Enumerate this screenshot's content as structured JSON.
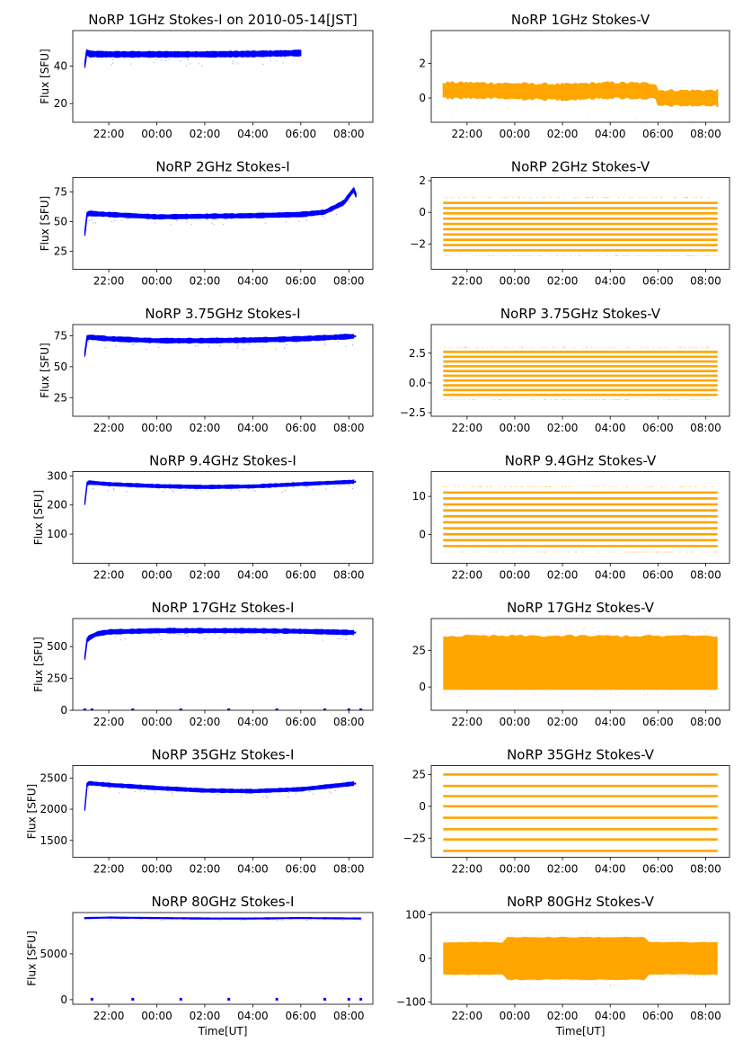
{
  "figure": {
    "background": "#ffffff"
  },
  "colors": {
    "stokes_i": "#0000ff",
    "stokes_v": "#ffa500",
    "axis": "#000000"
  },
  "chart_data": [
    {
      "id": "i1",
      "type": "scatter",
      "column": "left",
      "title": "NoRP 1GHz Stokes-I on 2010-05-14[JST]",
      "ylabel": "Flux [SFU]",
      "xlabel": "",
      "xlim": [
        20.5,
        33.0
      ],
      "ylim": [
        10,
        59
      ],
      "yticks": [
        20,
        40
      ],
      "ytick_labels": [
        "20",
        "40"
      ],
      "xticks": [
        22,
        24,
        26,
        28,
        30,
        32
      ],
      "xtick_labels": [
        "22:00",
        "00:00",
        "02:00",
        "04:00",
        "06:00",
        "08:00"
      ],
      "series": [
        {
          "x": [
            21.0,
            21.05,
            21.2,
            22.0,
            24.0,
            26.0,
            28.0,
            30.0
          ],
          "y": [
            40.5,
            47.5,
            46.5,
            46.3,
            46.3,
            46.3,
            46.5,
            47.0
          ]
        }
      ],
      "band": 1.6,
      "end_x": 30.0,
      "dropouts": []
    },
    {
      "id": "v1",
      "type": "scatter",
      "column": "right",
      "title": "NoRP 1GHz Stokes-V",
      "ylabel": "",
      "xlabel": "",
      "xlim": [
        20.5,
        33.0
      ],
      "ylim": [
        -1.4,
        3.9
      ],
      "yticks": [
        0,
        2
      ],
      "ytick_labels": [
        "0",
        "2"
      ],
      "xticks": [
        22,
        24,
        26,
        28,
        30,
        32
      ],
      "xtick_labels": [
        "22:00",
        "00:00",
        "02:00",
        "04:00",
        "06:00",
        "08:00"
      ],
      "series": [
        {
          "x": [
            21.0,
            22.0,
            24.0,
            26.0,
            28.0,
            29.9,
            30.0,
            32.5
          ],
          "y": [
            0.45,
            0.45,
            0.4,
            0.35,
            0.45,
            0.4,
            0.0,
            0.0
          ]
        }
      ],
      "band": 0.5,
      "end_x": 32.5,
      "dropouts": []
    },
    {
      "id": "i2",
      "type": "scatter",
      "column": "left",
      "title": "NoRP 2GHz Stokes-I",
      "ylabel": "Flux [SFU]",
      "xlabel": "",
      "xlim": [
        20.5,
        33.0
      ],
      "ylim": [
        10,
        87
      ],
      "yticks": [
        25,
        50,
        75
      ],
      "ytick_labels": [
        "25",
        "50",
        "75"
      ],
      "xticks": [
        22,
        24,
        26,
        28,
        30,
        32
      ],
      "xtick_labels": [
        "22:00",
        "00:00",
        "02:00",
        "04:00",
        "06:00",
        "08:00"
      ],
      "series": [
        {
          "x": [
            21.0,
            21.1,
            22.0,
            24.0,
            26.0,
            28.0,
            30.0,
            31.0,
            31.8,
            32.2,
            32.3
          ],
          "y": [
            40,
            57,
            56,
            54,
            54.5,
            55,
            56,
            58,
            66,
            77,
            72
          ]
        }
      ],
      "band": 2.0,
      "end_x": 32.3,
      "dropouts": []
    },
    {
      "id": "v2",
      "type": "scatter",
      "column": "right",
      "title": "NoRP 2GHz Stokes-V",
      "ylabel": "",
      "xlabel": "",
      "xlim": [
        20.5,
        33.0
      ],
      "ylim": [
        -3.6,
        2.2
      ],
      "yticks": [
        -2,
        0,
        2
      ],
      "ytick_labels": [
        "−2",
        "0",
        "2"
      ],
      "xticks": [
        22,
        24,
        26,
        28,
        30,
        32
      ],
      "xtick_labels": [
        "22:00",
        "00:00",
        "02:00",
        "04:00",
        "06:00",
        "08:00"
      ],
      "series": [
        {
          "x": [
            21.0,
            32.5
          ],
          "y": [
            0,
            0
          ]
        }
      ],
      "band": 0,
      "end_x": 32.5,
      "dropouts": [],
      "levels_range": [
        -2.4,
        0.6
      ]
    },
    {
      "id": "i3",
      "type": "scatter",
      "column": "left",
      "title": "NoRP 3.75GHz Stokes-I",
      "ylabel": "Flux [SFU]",
      "xlabel": "",
      "xlim": [
        20.5,
        33.0
      ],
      "ylim": [
        10,
        84
      ],
      "yticks": [
        25,
        50,
        75
      ],
      "ytick_labels": [
        "25",
        "50",
        "75"
      ],
      "xticks": [
        22,
        24,
        26,
        28,
        30,
        32
      ],
      "xtick_labels": [
        "22:00",
        "00:00",
        "02:00",
        "04:00",
        "06:00",
        "08:00"
      ],
      "series": [
        {
          "x": [
            21.0,
            21.1,
            22.0,
            24.0,
            26.0,
            28.0,
            30.0,
            32.2
          ],
          "y": [
            60,
            74,
            72.5,
            71,
            71,
            71.5,
            72.5,
            74.5
          ]
        }
      ],
      "band": 2.0,
      "end_x": 32.3,
      "dropouts": []
    },
    {
      "id": "v3",
      "type": "scatter",
      "column": "right",
      "title": "NoRP 3.75GHz Stokes-V",
      "ylabel": "",
      "xlabel": "",
      "xlim": [
        20.5,
        33.0
      ],
      "ylim": [
        -2.8,
        4.9
      ],
      "yticks": [
        -2.5,
        0.0,
        2.5
      ],
      "ytick_labels": [
        "−2.5",
        "0.0",
        "2.5"
      ],
      "xticks": [
        22,
        24,
        26,
        28,
        30,
        32
      ],
      "xtick_labels": [
        "22:00",
        "00:00",
        "02:00",
        "04:00",
        "06:00",
        "08:00"
      ],
      "series": [
        {
          "x": [
            21.0,
            32.5
          ],
          "y": [
            0,
            0
          ]
        }
      ],
      "band": 0,
      "end_x": 32.5,
      "dropouts": [],
      "levels_range": [
        -1.0,
        2.6
      ]
    },
    {
      "id": "i4",
      "type": "scatter",
      "column": "left",
      "title": "NoRP 9.4GHz Stokes-I",
      "ylabel": "Flux [SFU]",
      "xlabel": "",
      "xlim": [
        20.5,
        33.0
      ],
      "ylim": [
        0,
        315
      ],
      "yticks": [
        100,
        200,
        300
      ],
      "ytick_labels": [
        "100",
        "200",
        "300"
      ],
      "xticks": [
        22,
        24,
        26,
        28,
        30,
        32
      ],
      "xtick_labels": [
        "22:00",
        "00:00",
        "02:00",
        "04:00",
        "06:00",
        "08:00"
      ],
      "series": [
        {
          "x": [
            21.0,
            21.1,
            22.0,
            24.0,
            26.0,
            28.0,
            30.0,
            32.2
          ],
          "y": [
            205,
            278,
            272,
            265,
            262,
            264,
            272,
            280
          ]
        }
      ],
      "band": 6,
      "end_x": 32.3,
      "dropouts": []
    },
    {
      "id": "v4",
      "type": "scatter",
      "column": "right",
      "title": "NoRP 9.4GHz Stokes-V",
      "ylabel": "",
      "xlabel": "",
      "xlim": [
        20.5,
        33.0
      ],
      "ylim": [
        -7.5,
        16.5
      ],
      "yticks": [
        0,
        10
      ],
      "ytick_labels": [
        "0",
        "10"
      ],
      "xticks": [
        22,
        24,
        26,
        28,
        30,
        32
      ],
      "xtick_labels": [
        "22:00",
        "00:00",
        "02:00",
        "04:00",
        "06:00",
        "08:00"
      ],
      "series": [
        {
          "x": [
            21.0,
            32.5
          ],
          "y": [
            0,
            0
          ]
        }
      ],
      "band": 0,
      "end_x": 32.5,
      "dropouts": [],
      "levels_range": [
        -3,
        11
      ]
    },
    {
      "id": "i5",
      "type": "scatter",
      "column": "left",
      "title": "NoRP 17GHz Stokes-I",
      "ylabel": "Flux [SFU]",
      "xlabel": "",
      "xlim": [
        20.5,
        33.0
      ],
      "ylim": [
        0,
        720
      ],
      "yticks": [
        0,
        250,
        500
      ],
      "ytick_labels": [
        "0",
        "250",
        "500"
      ],
      "xticks": [
        22,
        24,
        26,
        28,
        30,
        32
      ],
      "xtick_labels": [
        "22:00",
        "00:00",
        "02:00",
        "04:00",
        "06:00",
        "08:00"
      ],
      "series": [
        {
          "x": [
            21.0,
            21.1,
            21.5,
            22.0,
            24.0,
            26.0,
            28.0,
            30.0,
            32.2
          ],
          "y": [
            410,
            560,
            600,
            615,
            625,
            625,
            625,
            620,
            610
          ]
        }
      ],
      "band": 18,
      "end_x": 32.3,
      "dropouts": [
        21.0,
        21.3,
        23.0,
        25.0,
        27.0,
        29.0,
        31.0,
        32.0,
        32.5
      ]
    },
    {
      "id": "v5",
      "type": "scatter",
      "column": "right",
      "title": "NoRP 17GHz Stokes-V",
      "ylabel": "",
      "xlabel": "",
      "xlim": [
        20.5,
        33.0
      ],
      "ylim": [
        -16,
        47
      ],
      "yticks": [
        0,
        25
      ],
      "ytick_labels": [
        "0",
        "25"
      ],
      "xticks": [
        22,
        24,
        26,
        28,
        30,
        32
      ],
      "xtick_labels": [
        "22:00",
        "00:00",
        "02:00",
        "04:00",
        "06:00",
        "08:00"
      ],
      "series": [
        {
          "x": [
            21.0,
            32.5
          ],
          "y": [
            0,
            0
          ]
        }
      ],
      "band": 0,
      "end_x": 32.5,
      "dropouts": [],
      "fill_range": [
        -2,
        36
      ]
    },
    {
      "id": "i6",
      "type": "scatter",
      "column": "left",
      "title": "NoRP 35GHz Stokes-I",
      "ylabel": "Flux [SFU]",
      "xlabel": "",
      "xlim": [
        20.5,
        33.0
      ],
      "ylim": [
        1230,
        2700
      ],
      "yticks": [
        1500,
        2000,
        2500
      ],
      "ytick_labels": [
        "1500",
        "2000",
        "2500"
      ],
      "xticks": [
        22,
        24,
        26,
        28,
        30,
        32
      ],
      "xtick_labels": [
        "22:00",
        "00:00",
        "02:00",
        "04:00",
        "06:00",
        "08:00"
      ],
      "series": [
        {
          "x": [
            21.0,
            21.1,
            22.0,
            24.0,
            26.0,
            28.0,
            30.0,
            31.5,
            32.2
          ],
          "y": [
            2000,
            2420,
            2390,
            2340,
            2300,
            2290,
            2320,
            2380,
            2410
          ]
        }
      ],
      "band": 30,
      "end_x": 32.3,
      "dropouts": []
    },
    {
      "id": "v6",
      "type": "scatter",
      "column": "right",
      "title": "NoRP 35GHz Stokes-V",
      "ylabel": "",
      "xlabel": "",
      "xlim": [
        20.5,
        33.0
      ],
      "ylim": [
        -40,
        32
      ],
      "yticks": [
        -25,
        0,
        25
      ],
      "ytick_labels": [
        "−25",
        "0",
        "25"
      ],
      "xticks": [
        22,
        24,
        26,
        28,
        30,
        32
      ],
      "xtick_labels": [
        "22:00",
        "00:00",
        "02:00",
        "04:00",
        "06:00",
        "08:00"
      ],
      "series": [
        {
          "x": [
            21.0,
            32.5
          ],
          "y": [
            0,
            0
          ]
        }
      ],
      "band": 0,
      "end_x": 32.5,
      "dropouts": [],
      "levels": [
        -35,
        -26,
        -18,
        -9,
        0,
        8,
        16,
        25
      ]
    },
    {
      "id": "i7",
      "type": "scatter",
      "column": "left",
      "title": "NoRP 80GHz Stokes-I",
      "ylabel": "Flux [SFU]",
      "xlabel": "Time[UT]",
      "xlim": [
        20.5,
        33.0
      ],
      "ylim": [
        -500,
        9500
      ],
      "yticks": [
        0,
        5000
      ],
      "ytick_labels": [
        "0",
        "5000"
      ],
      "xticks": [
        22,
        24,
        26,
        28,
        30,
        32
      ],
      "xtick_labels": [
        "22:00",
        "00:00",
        "02:00",
        "04:00",
        "06:00",
        "08:00"
      ],
      "series": [
        {
          "x": [
            21.0,
            22.0,
            24.0,
            26.0,
            28.0,
            30.0,
            32.5
          ],
          "y": [
            8900,
            8950,
            8900,
            8850,
            8850,
            8900,
            8850
          ]
        }
      ],
      "band": 60,
      "end_x": 32.5,
      "dropouts": [
        21.3,
        23.0,
        25.0,
        27.0,
        29.0,
        31.0,
        32.0,
        32.5
      ]
    },
    {
      "id": "v7",
      "type": "scatter",
      "column": "right",
      "title": "NoRP 80GHz Stokes-V",
      "ylabel": "",
      "xlabel": "Time[UT]",
      "xlim": [
        20.5,
        33.0
      ],
      "ylim": [
        -105,
        105
      ],
      "yticks": [
        -100,
        0,
        100
      ],
      "ytick_labels": [
        "−100",
        "0",
        "100"
      ],
      "xticks": [
        22,
        24,
        26,
        28,
        30,
        32
      ],
      "xtick_labels": [
        "22:00",
        "00:00",
        "02:00",
        "04:00",
        "06:00",
        "08:00"
      ],
      "series": [
        {
          "x": [
            21.0,
            32.5
          ],
          "y": [
            0,
            0
          ]
        }
      ],
      "band": 0,
      "end_x": 32.5,
      "dropouts": [],
      "fill_range": [
        -38,
        38
      ],
      "fill_range_mid": [
        -50,
        50
      ]
    }
  ]
}
